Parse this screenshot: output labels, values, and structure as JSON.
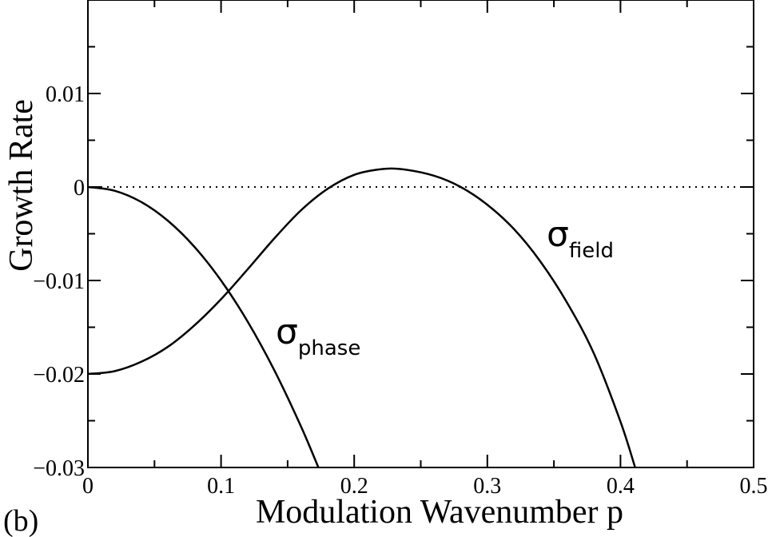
{
  "panel_label": "(b)",
  "chart_data": {
    "type": "line",
    "xlabel": "Modulation Wavenumber p",
    "ylabel": "Growth Rate",
    "xlim": [
      0,
      0.5
    ],
    "ylim": [
      -0.03,
      0.02
    ],
    "x_ticks": [
      0,
      0.1,
      0.2,
      0.3,
      0.4,
      0.5
    ],
    "x_tick_labels": [
      "0",
      "0.1",
      "0.2",
      "0.3",
      "0.4",
      "0.5"
    ],
    "y_ticks": [
      -0.03,
      -0.02,
      -0.01,
      0,
      0.01
    ],
    "y_tick_labels": [
      "−0.03",
      "−0.02",
      "−0.01",
      "0",
      "0.01"
    ],
    "grid": false,
    "reference_line": {
      "y": 0,
      "style": "dotted"
    },
    "series": [
      {
        "label_symbol": "σ",
        "label_subscript": "phase",
        "x": [
          0,
          0.02,
          0.04,
          0.06,
          0.08,
          0.1,
          0.12,
          0.14,
          0.16,
          0.174
        ],
        "y": [
          0,
          -0.0004,
          -0.0016,
          -0.0036,
          -0.0064,
          -0.01,
          -0.0144,
          -0.0196,
          -0.0256,
          -0.0303
        ]
      },
      {
        "label_symbol": "σ",
        "label_subscript": "field",
        "x": [
          0,
          0.02,
          0.04,
          0.06,
          0.08,
          0.1,
          0.12,
          0.14,
          0.16,
          0.18,
          0.2,
          0.22,
          0.236,
          0.26,
          0.28,
          0.3,
          0.32,
          0.34,
          0.36,
          0.38,
          0.4,
          0.411
        ],
        "y": [
          -0.02,
          -0.0197,
          -0.0187,
          -0.0171,
          -0.0148,
          -0.012,
          -0.0088,
          -0.0055,
          -0.0025,
          -0.0002,
          0.0013,
          0.0019,
          0.0019,
          0.0012,
          0.0,
          -0.0019,
          -0.0045,
          -0.008,
          -0.0124,
          -0.0178,
          -0.0251,
          -0.03
        ]
      }
    ]
  }
}
